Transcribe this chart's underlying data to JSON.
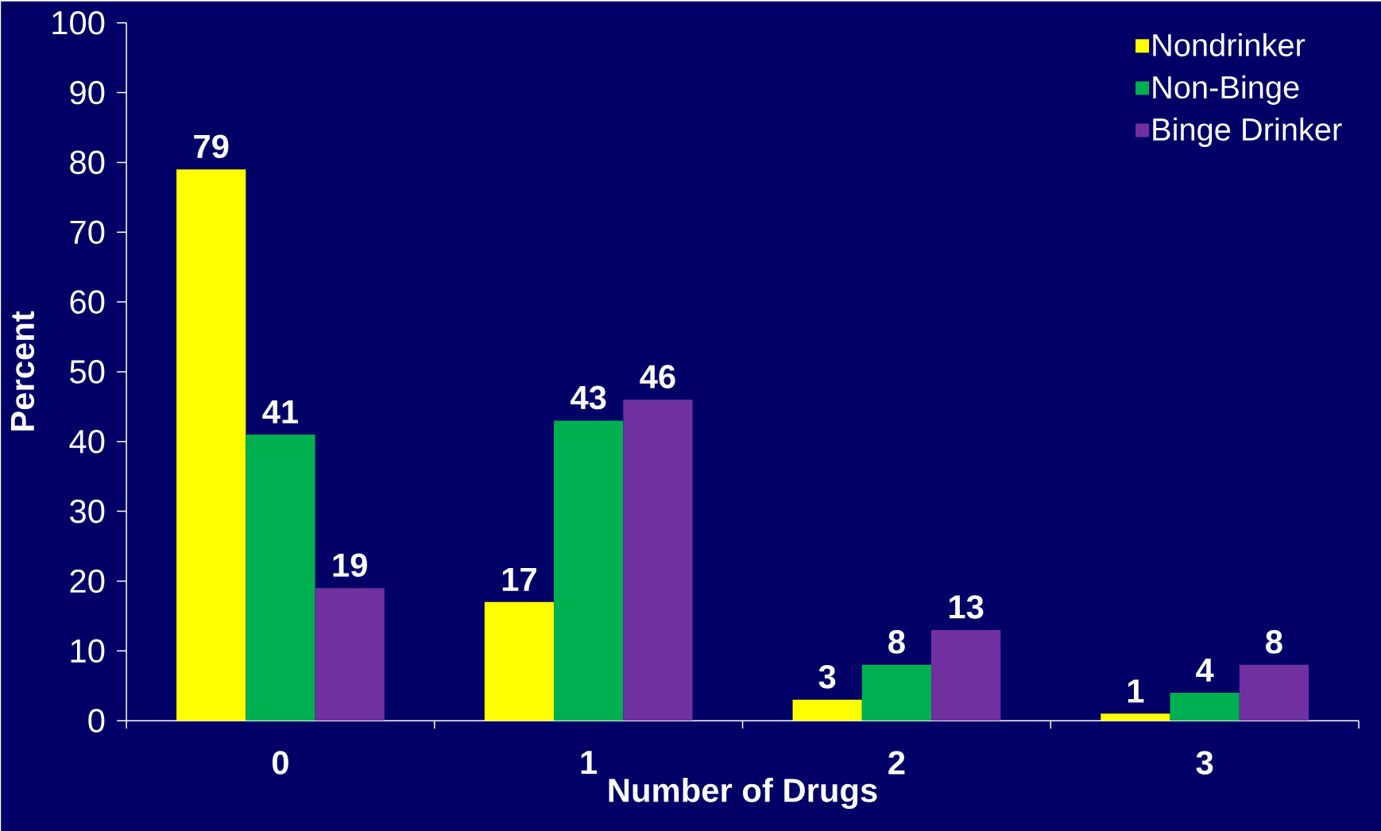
{
  "chart_data": {
    "type": "bar",
    "xlabel": "Number of Drugs",
    "ylabel": "Percent",
    "categories": [
      "0",
      "1",
      "2",
      "3"
    ],
    "series": [
      {
        "name": "Nondrinker",
        "color": "#ffff00",
        "values": [
          79,
          17,
          3,
          1
        ]
      },
      {
        "name": "Non-Binge",
        "color": "#00b050",
        "values": [
          41,
          43,
          8,
          4
        ]
      },
      {
        "name": "Binge Drinker",
        "color": "#7030a0",
        "values": [
          19,
          46,
          13,
          8
        ]
      }
    ],
    "ylim": [
      0,
      100
    ],
    "yticks": [
      0,
      10,
      20,
      30,
      40,
      50,
      60,
      70,
      80,
      90,
      100
    ],
    "data_labels": true,
    "legend": "top right",
    "grid": false
  }
}
